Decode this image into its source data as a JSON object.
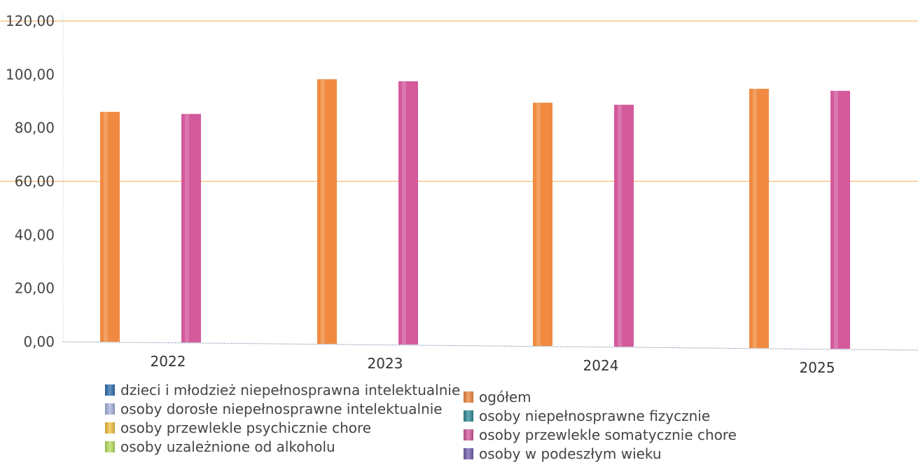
{
  "chart_data": {
    "type": "bar",
    "categories": [
      "2022",
      "2023",
      "2024",
      "2025"
    ],
    "ylim": [
      0,
      120
    ],
    "yticks": [
      "0,00",
      "20,00",
      "40,00",
      "60,00",
      "80,00",
      "100,00",
      "120,00"
    ],
    "ytick_values": [
      0,
      20,
      40,
      60,
      80,
      100,
      120
    ],
    "gridlines_at": [
      60,
      120
    ],
    "legend_position": "bottom",
    "series": [
      {
        "name": "dzieci i młodzież niepełnosprawna intelektualnie",
        "color": "#2f6fb0",
        "values": [
          0,
          0,
          0,
          0
        ]
      },
      {
        "name": "ogółem",
        "color": "#f08a40",
        "values": [
          86,
          99,
          91,
          97
        ]
      },
      {
        "name": "osoby dorosłe niepełnosprawne intelektualnie",
        "color": "#a6b4e0",
        "values": [
          0,
          0,
          0,
          0
        ]
      },
      {
        "name": "osoby niepełnosprawne fizycznie",
        "color": "#2f8c98",
        "values": [
          0,
          0,
          0,
          0
        ]
      },
      {
        "name": "osoby przewlekle psychicznie chore",
        "color": "#f5c242",
        "values": [
          0,
          0,
          0,
          0
        ]
      },
      {
        "name": "osoby przewlekle somatycznie chore",
        "color": "#d45a9c",
        "values": [
          85.5,
          98.5,
          90.5,
          96.5
        ]
      },
      {
        "name": "osoby uzależnione od alkoholu",
        "color": "#b8e060",
        "values": [
          0,
          0,
          0,
          0
        ]
      },
      {
        "name": "osoby w podeszłym wieku",
        "color": "#7460b0",
        "values": [
          0,
          0,
          0,
          0
        ]
      }
    ]
  }
}
